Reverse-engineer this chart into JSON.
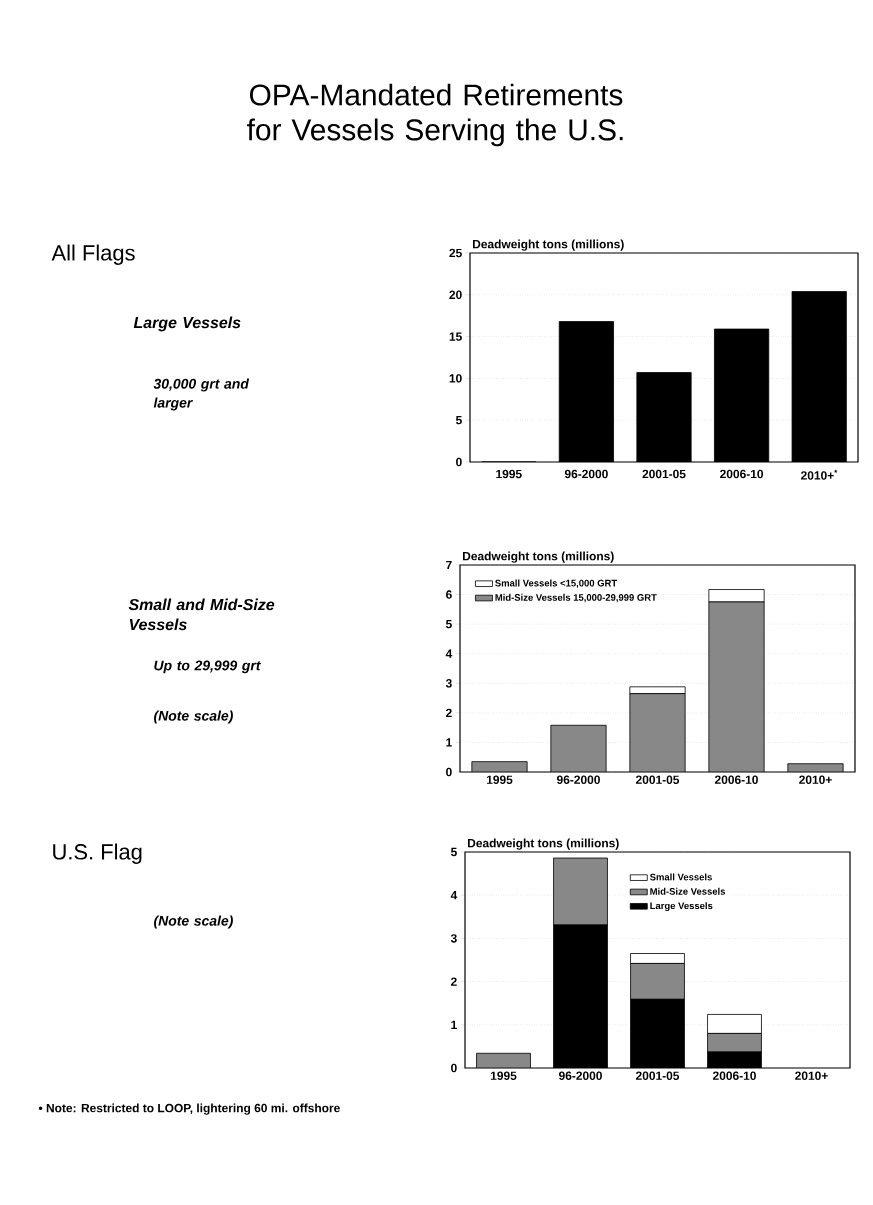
{
  "chart_data": [
    {
      "type": "bar",
      "title": "OPA-Mandated Retirements for Vessels Serving the U.S.",
      "ylabel": "Deadweight tons (millions)",
      "annotations": [
        "All Flags",
        "Large Vessels",
        "30,000 grt and larger"
      ],
      "categories": [
        "1995",
        "96-2000",
        "2001-05",
        "2006-10",
        "2010+$^{*}$"
      ],
      "values": [
        0,
        16.8,
        10.7,
        15.9,
        20.4
      ],
      "color": "#000000",
      "ylim": [
        0,
        25
      ],
      "yticks": [
        0,
        5,
        10,
        15,
        20,
        25
      ],
      "grid": "y"
    },
    {
      "type": "bar",
      "ylabel": "Deadweight tons (millions)",
      "annotations": [
        "Small and Mid-Size Vessels",
        "Up to 29,999 grt",
        "(Note scale)"
      ],
      "categories": [
        "1995",
        "96-2000",
        "2001-05",
        "2006-10",
        "2010+"
      ],
      "stacked": true,
      "series": [
        {
          "name": "Mid-Size Vessels 15,000-29,999 GRT",
          "color": "#888888",
          "values": [
            0.35,
            1.58,
            2.65,
            5.75,
            0.28
          ]
        },
        {
          "name": "Small Vessels <15,000 GRT",
          "color": "#ffffff",
          "values": [
            0,
            0,
            0.23,
            0.42,
            0
          ]
        }
      ],
      "ylim": [
        0,
        7
      ],
      "yticks": [
        0,
        1,
        2,
        3,
        4,
        5,
        6,
        7
      ],
      "grid": "y",
      "legend": "top left"
    },
    {
      "type": "bar",
      "ylabel": "Deadweight tons (millions)",
      "annotations": [
        "U.S. Flag",
        "(Note scale)",
        "• Note: Restricted to LOOP, lightering 60 mi. offshore"
      ],
      "categories": [
        "1995",
        "96-2000",
        "2001-05",
        "2006-10",
        "2010+"
      ],
      "stacked": true,
      "series": [
        {
          "name": "Large Vessels",
          "color": "#000000",
          "values": [
            0,
            3.31,
            1.59,
            0.37,
            0
          ]
        },
        {
          "name": "Mid-Size Vessels",
          "color": "#888888",
          "values": [
            0.34,
            1.55,
            0.83,
            0.43,
            0
          ]
        },
        {
          "name": "Small Vessels",
          "color": "#ffffff",
          "values": [
            0,
            0,
            0.23,
            0.44,
            0
          ]
        }
      ],
      "ylim": [
        0,
        5
      ],
      "yticks": [
        0,
        1,
        2,
        3,
        4,
        5
      ],
      "grid": "y",
      "legend": "top right"
    }
  ]
}
